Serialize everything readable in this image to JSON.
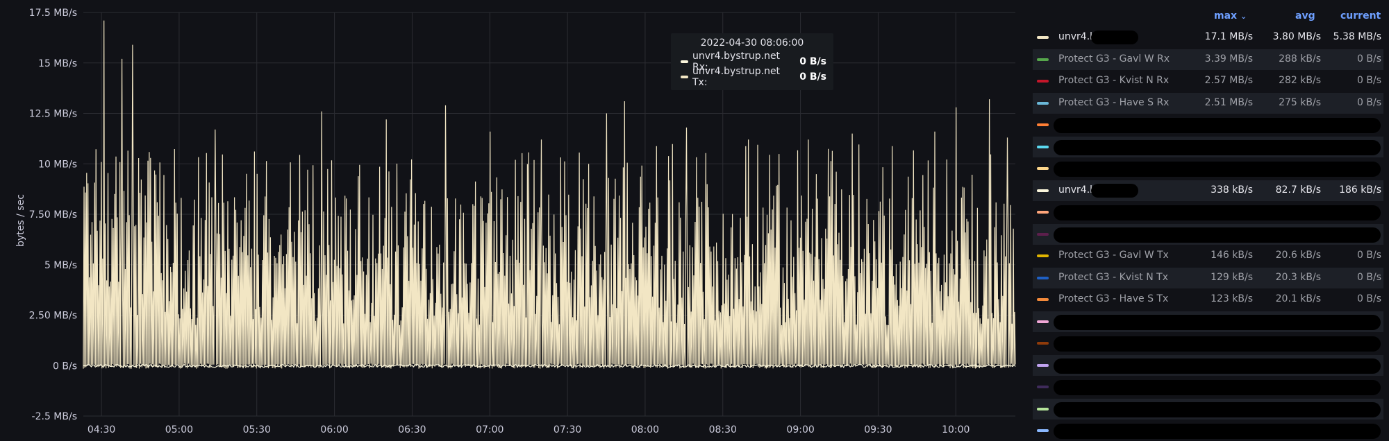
{
  "chart_data": {
    "type": "line",
    "ylabel": "bytes / sec",
    "y_unit": "MB/s",
    "ylim": [
      -2.5,
      17.5
    ],
    "y_ticks": [
      "17.5 MB/s",
      "15 MB/s",
      "12.5 MB/s",
      "10 MB/s",
      "7.50 MB/s",
      "5 MB/s",
      "2.50 MB/s",
      "0 B/s",
      "-2.5 MB/s"
    ],
    "y_tick_values": [
      17.5,
      15,
      12.5,
      10,
      7.5,
      5,
      2.5,
      0,
      -2.5
    ],
    "x_ticks": [
      "04:30",
      "05:00",
      "05:30",
      "06:00",
      "06:30",
      "07:00",
      "07:30",
      "08:00",
      "08:30",
      "09:00",
      "09:30",
      "10:00"
    ],
    "x_range": [
      "04:23",
      "10:23"
    ],
    "grid": true,
    "legend_position": "right",
    "series": [
      {
        "name": "unvr4.bystrup.net Tx",
        "color": "#f2e6c4",
        "peaks": [
          {
            "t": "04:31",
            "v": 17.1
          },
          {
            "t": "04:38",
            "v": 15.2
          },
          {
            "t": "04:42",
            "v": 15.9
          },
          {
            "t": "05:14",
            "v": 11.7
          },
          {
            "t": "05:30",
            "v": 9.5
          },
          {
            "t": "05:55",
            "v": 12.6
          },
          {
            "t": "06:20",
            "v": 12.2
          },
          {
            "t": "06:43",
            "v": 12.9
          },
          {
            "t": "07:00",
            "v": 11.6
          },
          {
            "t": "07:20",
            "v": 11.2
          },
          {
            "t": "07:45",
            "v": 12.5
          },
          {
            "t": "07:52",
            "v": 13.1
          },
          {
            "t": "08:16",
            "v": 11.8
          },
          {
            "t": "08:40",
            "v": 11.2
          },
          {
            "t": "09:03",
            "v": 11.2
          },
          {
            "t": "09:20",
            "v": 11.5
          },
          {
            "t": "09:52",
            "v": 11.6
          },
          {
            "t": "10:00",
            "v": 12.8
          },
          {
            "t": "10:13",
            "v": 13.2
          },
          {
            "t": "10:20",
            "v": 11.3
          }
        ]
      },
      {
        "name": "unvr4.bystrup.net Rx",
        "color": "#fbf6dc",
        "baseline": 0
      }
    ]
  },
  "tooltip": {
    "time": "2022-04-30 08:06:00",
    "rows": [
      {
        "name": "unvr4.bystrup.net Rx:",
        "value": "0 B/s",
        "color": "#fbf6dc"
      },
      {
        "name": "unvr4.bystrup.net Tx:",
        "value": "0 B/s",
        "color": "#f2e6c4"
      }
    ]
  },
  "legend": {
    "headers": {
      "max": "max",
      "avg": "avg",
      "current": "current"
    },
    "rows": [
      {
        "name": "unvr4.b…t Tx",
        "max": "17.1 MB/s",
        "avg": "3.80 MB/s",
        "current": "5.38 MB/s",
        "color": "#f2e6c4",
        "style": "bright",
        "redacted": "partial"
      },
      {
        "name": "Protect G3 - Gavl W Rx",
        "max": "3.39 MB/s",
        "avg": "288 kB/s",
        "current": "0 B/s",
        "color": "#56a64b",
        "style": "dim"
      },
      {
        "name": "Protect G3 - Kvist N Rx",
        "max": "2.57 MB/s",
        "avg": "282 kB/s",
        "current": "0 B/s",
        "color": "#c4162a",
        "style": "dim"
      },
      {
        "name": "Protect G3 - Have S Rx",
        "max": "2.51 MB/s",
        "avg": "275 kB/s",
        "current": "0 B/s",
        "color": "#6ab8d8",
        "style": "dim"
      },
      {
        "name": "",
        "max": "",
        "avg": "",
        "current": "",
        "color": "#ff7f35",
        "style": "dim",
        "redacted": "full"
      },
      {
        "name": "",
        "max": "",
        "avg": "",
        "current": "",
        "color": "#5bd9f0",
        "style": "dim",
        "redacted": "full"
      },
      {
        "name": "",
        "max": "",
        "avg": "",
        "current": "",
        "color": "#fcd58a",
        "style": "dim",
        "redacted": "full"
      },
      {
        "name": "unvr4.b… Rx",
        "max": "338 kB/s",
        "avg": "82.7 kB/s",
        "current": "186 kB/s",
        "color": "#fbf6dc",
        "style": "bright",
        "redacted": "partial"
      },
      {
        "name": "",
        "max": "",
        "avg": "",
        "current": "",
        "color": "#ffa57a",
        "style": "dim",
        "redacted": "full"
      },
      {
        "name": "",
        "max": "",
        "avg": "",
        "current": "",
        "color": "#5c1f4c",
        "style": "dim",
        "redacted": "full"
      },
      {
        "name": "Protect G3 - Gavl W Tx",
        "max": "146 kB/s",
        "avg": "20.6 kB/s",
        "current": "0 B/s",
        "color": "#e0b400",
        "style": "dim"
      },
      {
        "name": "Protect G3 - Kvist N Tx",
        "max": "129 kB/s",
        "avg": "20.3 kB/s",
        "current": "0 B/s",
        "color": "#1f60c4",
        "style": "dim"
      },
      {
        "name": "Protect G3 - Have S Tx",
        "max": "123 kB/s",
        "avg": "20.1 kB/s",
        "current": "0 B/s",
        "color": "#f2893a",
        "style": "dim"
      },
      {
        "name": "",
        "max": "",
        "avg": "",
        "current": "",
        "color": "#f2a8d8",
        "style": "dim",
        "redacted": "full"
      },
      {
        "name": "",
        "max": "",
        "avg": "",
        "current": "",
        "color": "#8f3b0a",
        "style": "dim",
        "redacted": "full"
      },
      {
        "name": "",
        "max": "",
        "avg": "",
        "current": "",
        "color": "#c1a3f0",
        "style": "dim",
        "redacted": "full"
      },
      {
        "name": "",
        "max": "",
        "avg": "",
        "current": "",
        "color": "#3f2b5b",
        "style": "dim",
        "redacted": "full"
      },
      {
        "name": "",
        "max": "",
        "avg": "",
        "current": "",
        "color": "#b5e59a",
        "style": "dim",
        "redacted": "full"
      },
      {
        "name": "",
        "max": "",
        "avg": "",
        "current": "",
        "color": "#8ab8ff",
        "style": "dim",
        "redacted": "full"
      }
    ]
  }
}
